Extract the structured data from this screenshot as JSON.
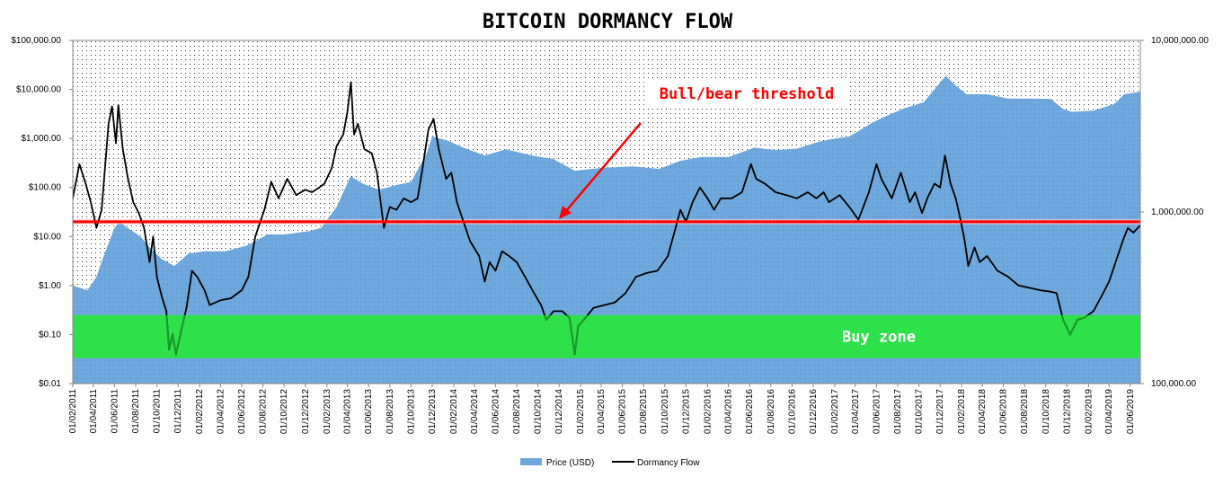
{
  "chart_data": {
    "type": "line",
    "title": "BITCOIN DORMANCY FLOW",
    "y_left": {
      "scale": "log",
      "range": [
        0.01,
        100000
      ],
      "tick_values": [
        0.01,
        0.1,
        1,
        10,
        100,
        1000,
        10000,
        100000
      ],
      "tick_labels": [
        "$0.01",
        "$0.10",
        "$1.00",
        "$10.00",
        "$100.00",
        "$1,000.00",
        "$10,000.00",
        "$100,000.00"
      ]
    },
    "y_right": {
      "scale": "log",
      "range": [
        100000,
        10000000
      ],
      "tick_values": [
        100000,
        1000000,
        10000000
      ],
      "tick_labels": [
        "100,000.00",
        "1,000,000.00",
        "10,000,000.00"
      ]
    },
    "x_axis": {
      "type": "date",
      "range": [
        "2011-02-01",
        "2019-06-30"
      ],
      "tick_labels": [
        "01/02/2011",
        "01/04/2011",
        "01/06/2011",
        "01/08/2011",
        "01/10/2011",
        "01/12/2011",
        "01/02/2012",
        "01/04/2012",
        "01/06/2012",
        "01/08/2012",
        "01/10/2012",
        "01/12/2012",
        "01/02/2013",
        "01/04/2013",
        "01/06/2013",
        "01/08/2013",
        "01/10/2013",
        "01/12/2013",
        "01/02/2014",
        "01/04/2014",
        "01/06/2014",
        "01/08/2014",
        "01/10/2014",
        "01/12/2014",
        "01/02/2015",
        "01/04/2015",
        "01/06/2015",
        "01/08/2015",
        "01/10/2015",
        "01/12/2015",
        "01/02/2016",
        "01/04/2016",
        "01/06/2016",
        "01/08/2016",
        "01/10/2016",
        "01/12/2016",
        "01/02/2017",
        "01/04/2017",
        "01/06/2017",
        "01/08/2017",
        "01/10/2017",
        "01/12/2017",
        "01/02/2018",
        "01/04/2018",
        "01/06/2018",
        "01/08/2018",
        "01/10/2018",
        "01/12/2018",
        "01/02/2019",
        "01/04/2019",
        "01/06/2019"
      ]
    },
    "series": [
      {
        "name": "Price (USD)",
        "type": "area",
        "axis": "left",
        "color": "#6fa8dc",
        "points": [
          [
            "2011-02-01",
            1.0
          ],
          [
            "2011-03-15",
            0.8
          ],
          [
            "2011-04-10",
            1.5
          ],
          [
            "2011-05-01",
            4
          ],
          [
            "2011-06-01",
            15
          ],
          [
            "2011-06-15",
            20
          ],
          [
            "2011-07-15",
            14
          ],
          [
            "2011-08-15",
            10
          ],
          [
            "2011-09-15",
            5.5
          ],
          [
            "2011-10-15",
            3.5
          ],
          [
            "2011-11-20",
            2.5
          ],
          [
            "2011-12-31",
            4.5
          ],
          [
            "2012-02-15",
            5
          ],
          [
            "2012-04-15",
            5
          ],
          [
            "2012-06-15",
            6.5
          ],
          [
            "2012-08-15",
            11
          ],
          [
            "2012-10-01",
            11
          ],
          [
            "2012-12-15",
            13
          ],
          [
            "2013-01-15",
            15
          ],
          [
            "2013-03-01",
            40
          ],
          [
            "2013-04-10",
            170
          ],
          [
            "2013-05-15",
            120
          ],
          [
            "2013-07-01",
            90
          ],
          [
            "2013-08-15",
            110
          ],
          [
            "2013-10-01",
            130
          ],
          [
            "2013-11-15",
            500
          ],
          [
            "2013-12-01",
            1100
          ],
          [
            "2014-01-15",
            900
          ],
          [
            "2014-03-01",
            650
          ],
          [
            "2014-05-01",
            450
          ],
          [
            "2014-07-01",
            600
          ],
          [
            "2014-09-15",
            450
          ],
          [
            "2014-11-15",
            380
          ],
          [
            "2015-01-15",
            220
          ],
          [
            "2015-04-01",
            250
          ],
          [
            "2015-07-01",
            270
          ],
          [
            "2015-09-15",
            240
          ],
          [
            "2015-11-15",
            350
          ],
          [
            "2016-01-15",
            420
          ],
          [
            "2016-04-01",
            420
          ],
          [
            "2016-06-15",
            650
          ],
          [
            "2016-08-15",
            580
          ],
          [
            "2016-10-15",
            620
          ],
          [
            "2016-12-15",
            850
          ],
          [
            "2017-01-15",
            950
          ],
          [
            "2017-03-15",
            1100
          ],
          [
            "2017-05-15",
            2000
          ],
          [
            "2017-06-15",
            2600
          ],
          [
            "2017-08-15",
            4000
          ],
          [
            "2017-10-15",
            5500
          ],
          [
            "2017-12-17",
            19000
          ],
          [
            "2018-01-15",
            12000
          ],
          [
            "2018-02-15",
            8000
          ],
          [
            "2018-04-15",
            8000
          ],
          [
            "2018-06-15",
            6500
          ],
          [
            "2018-08-15",
            6500
          ],
          [
            "2018-10-15",
            6400
          ],
          [
            "2018-11-20",
            4000
          ],
          [
            "2018-12-15",
            3500
          ],
          [
            "2019-02-15",
            3700
          ],
          [
            "2019-04-15",
            5000
          ],
          [
            "2019-05-15",
            8000
          ],
          [
            "2019-06-30",
            9000
          ]
        ]
      },
      {
        "name": "Dormancy Flow",
        "type": "line",
        "axis": "left",
        "color": "#000000",
        "points": [
          [
            "2011-02-01",
            60
          ],
          [
            "2011-02-20",
            300
          ],
          [
            "2011-03-10",
            120
          ],
          [
            "2011-03-25",
            50
          ],
          [
            "2011-04-10",
            15
          ],
          [
            "2011-04-25",
            35
          ],
          [
            "2011-05-15",
            2000
          ],
          [
            "2011-05-25",
            4500
          ],
          [
            "2011-06-05",
            800
          ],
          [
            "2011-06-12",
            4800
          ],
          [
            "2011-06-25",
            600
          ],
          [
            "2011-07-10",
            150
          ],
          [
            "2011-07-25",
            50
          ],
          [
            "2011-08-10",
            30
          ],
          [
            "2011-08-25",
            15
          ],
          [
            "2011-09-10",
            3
          ],
          [
            "2011-09-20",
            10
          ],
          [
            "2011-10-01",
            1.5
          ],
          [
            "2011-10-15",
            0.6
          ],
          [
            "2011-10-28",
            0.3
          ],
          [
            "2011-11-05",
            0.05
          ],
          [
            "2011-11-15",
            0.1
          ],
          [
            "2011-11-25",
            0.04
          ],
          [
            "2011-12-10",
            0.12
          ],
          [
            "2011-12-25",
            0.35
          ],
          [
            "2012-01-10",
            2
          ],
          [
            "2012-01-25",
            1.5
          ],
          [
            "2012-02-15",
            0.8
          ],
          [
            "2012-03-01",
            0.4
          ],
          [
            "2012-04-01",
            0.5
          ],
          [
            "2012-05-01",
            0.55
          ],
          [
            "2012-06-01",
            0.8
          ],
          [
            "2012-06-20",
            1.5
          ],
          [
            "2012-07-10",
            10
          ],
          [
            "2012-08-05",
            35
          ],
          [
            "2012-08-25",
            130
          ],
          [
            "2012-09-15",
            60
          ],
          [
            "2012-10-10",
            150
          ],
          [
            "2012-11-05",
            70
          ],
          [
            "2012-12-01",
            90
          ],
          [
            "2012-12-20",
            80
          ],
          [
            "2013-01-10",
            100
          ],
          [
            "2013-01-25",
            120
          ],
          [
            "2013-02-15",
            250
          ],
          [
            "2013-03-01",
            700
          ],
          [
            "2013-03-20",
            1200
          ],
          [
            "2013-04-01",
            3500
          ],
          [
            "2013-04-11",
            14000
          ],
          [
            "2013-04-20",
            1200
          ],
          [
            "2013-05-01",
            2000
          ],
          [
            "2013-05-20",
            600
          ],
          [
            "2013-06-10",
            500
          ],
          [
            "2013-06-25",
            200
          ],
          [
            "2013-07-15",
            15
          ],
          [
            "2013-08-01",
            40
          ],
          [
            "2013-08-20",
            35
          ],
          [
            "2013-09-10",
            60
          ],
          [
            "2013-10-01",
            50
          ],
          [
            "2013-10-20",
            60
          ],
          [
            "2013-11-01",
            200
          ],
          [
            "2013-11-20",
            1500
          ],
          [
            "2013-12-05",
            2500
          ],
          [
            "2013-12-20",
            600
          ],
          [
            "2014-01-10",
            150
          ],
          [
            "2014-01-25",
            200
          ],
          [
            "2014-02-10",
            50
          ],
          [
            "2014-03-01",
            20
          ],
          [
            "2014-03-20",
            8
          ],
          [
            "2014-04-15",
            4
          ],
          [
            "2014-05-01",
            1.2
          ],
          [
            "2014-05-15",
            3
          ],
          [
            "2014-06-01",
            2
          ],
          [
            "2014-06-20",
            5
          ],
          [
            "2014-07-10",
            4
          ],
          [
            "2014-08-01",
            3
          ],
          [
            "2014-08-25",
            1.5
          ],
          [
            "2014-09-20",
            0.7
          ],
          [
            "2014-10-10",
            0.4
          ],
          [
            "2014-10-25",
            0.2
          ],
          [
            "2014-11-15",
            0.3
          ],
          [
            "2014-12-10",
            0.3
          ],
          [
            "2014-12-31",
            0.22
          ],
          [
            "2015-01-15",
            0.04
          ],
          [
            "2015-01-25",
            0.15
          ],
          [
            "2015-02-10",
            0.2
          ],
          [
            "2015-03-10",
            0.35
          ],
          [
            "2015-04-10",
            0.4
          ],
          [
            "2015-05-10",
            0.45
          ],
          [
            "2015-06-10",
            0.7
          ],
          [
            "2015-07-10",
            1.5
          ],
          [
            "2015-08-10",
            1.8
          ],
          [
            "2015-09-10",
            2
          ],
          [
            "2015-10-10",
            4
          ],
          [
            "2015-11-01",
            15
          ],
          [
            "2015-11-15",
            35
          ],
          [
            "2015-12-01",
            20
          ],
          [
            "2015-12-20",
            50
          ],
          [
            "2016-01-10",
            100
          ],
          [
            "2016-02-01",
            60
          ],
          [
            "2016-02-20",
            35
          ],
          [
            "2016-03-10",
            60
          ],
          [
            "2016-04-10",
            60
          ],
          [
            "2016-05-10",
            80
          ],
          [
            "2016-06-05",
            300
          ],
          [
            "2016-06-20",
            150
          ],
          [
            "2016-07-15",
            120
          ],
          [
            "2016-08-15",
            80
          ],
          [
            "2016-09-15",
            70
          ],
          [
            "2016-10-15",
            60
          ],
          [
            "2016-11-15",
            80
          ],
          [
            "2016-12-10",
            60
          ],
          [
            "2016-12-31",
            80
          ],
          [
            "2017-01-15",
            50
          ],
          [
            "2017-02-15",
            70
          ],
          [
            "2017-03-15",
            40
          ],
          [
            "2017-04-10",
            22
          ],
          [
            "2017-05-10",
            80
          ],
          [
            "2017-06-01",
            300
          ],
          [
            "2017-06-15",
            150
          ],
          [
            "2017-07-15",
            60
          ],
          [
            "2017-08-10",
            200
          ],
          [
            "2017-09-05",
            50
          ],
          [
            "2017-09-20",
            80
          ],
          [
            "2017-10-10",
            30
          ],
          [
            "2017-10-25",
            60
          ],
          [
            "2017-11-15",
            120
          ],
          [
            "2017-12-01",
            100
          ],
          [
            "2017-12-15",
            450
          ],
          [
            "2017-12-31",
            120
          ],
          [
            "2018-01-15",
            60
          ],
          [
            "2018-01-30",
            20
          ],
          [
            "2018-02-10",
            8
          ],
          [
            "2018-02-20",
            2.5
          ],
          [
            "2018-03-10",
            6
          ],
          [
            "2018-03-25",
            3
          ],
          [
            "2018-04-15",
            4
          ],
          [
            "2018-05-15",
            2
          ],
          [
            "2018-06-15",
            1.5
          ],
          [
            "2018-07-15",
            1
          ],
          [
            "2018-08-15",
            0.9
          ],
          [
            "2018-09-15",
            0.8
          ],
          [
            "2018-10-15",
            0.75
          ],
          [
            "2018-11-01",
            0.7
          ],
          [
            "2018-11-20",
            0.2
          ],
          [
            "2018-12-10",
            0.1
          ],
          [
            "2018-12-31",
            0.2
          ],
          [
            "2019-01-20",
            0.22
          ],
          [
            "2019-02-15",
            0.3
          ],
          [
            "2019-03-10",
            0.6
          ],
          [
            "2019-04-01",
            1.2
          ],
          [
            "2019-04-20",
            3
          ],
          [
            "2019-05-10",
            8
          ],
          [
            "2019-05-25",
            15
          ],
          [
            "2019-06-10",
            12
          ],
          [
            "2019-06-30",
            17
          ]
        ]
      }
    ],
    "annotations": [
      {
        "type": "hline",
        "label": "Bull/bear threshold",
        "value": 20,
        "color": "#ff0000"
      },
      {
        "type": "band",
        "label": "Buy zone",
        "range": [
          0.033,
          0.25
        ],
        "color": "#2ee04a"
      }
    ],
    "legend": {
      "position": "bottom-center",
      "entries": [
        "Price (USD)",
        "Dormancy Flow"
      ]
    },
    "grid": false
  }
}
